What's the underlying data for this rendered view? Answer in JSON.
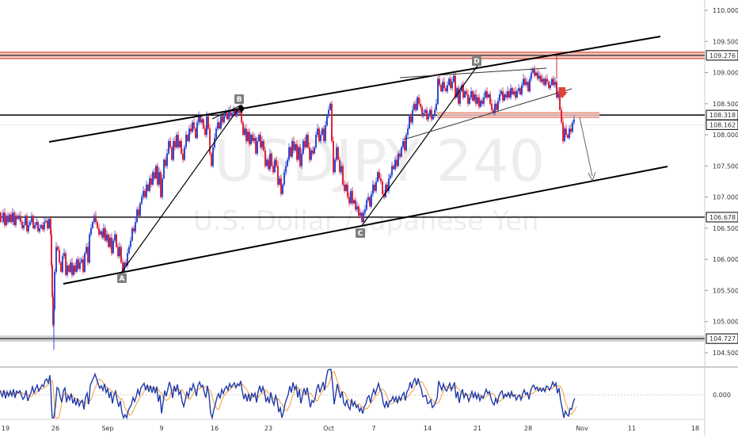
{
  "chart_data": {
    "type": "candlestick",
    "symbol": "USDJPY",
    "interval": "240",
    "instrument": "U.S. Dollar / Japanese Yen",
    "y_range": [
      104.35,
      110.15
    ],
    "y_ticks": [
      "110.000",
      "109.500",
      "109.000",
      "108.500",
      "108.000",
      "107.500",
      "107.000",
      "106.500",
      "106.000",
      "105.500",
      "105.000",
      "104.500"
    ],
    "x_ticks": [
      "19",
      "26",
      "Sep",
      "9",
      "16",
      "23",
      "Oct",
      "7",
      "14",
      "21",
      "28",
      "Nov",
      "11",
      "18"
    ],
    "horizontal_levels": [
      {
        "price": 109.276,
        "label": "109.276",
        "style": "zone-red"
      },
      {
        "price": 108.318,
        "label": "108.318",
        "style": "black"
      },
      {
        "price": 108.162,
        "label": "108.162",
        "style": "current"
      },
      {
        "price": 106.678,
        "label": "106.678",
        "style": "black"
      },
      {
        "price": 104.727,
        "label": "104.727",
        "style": "zone-gray"
      }
    ],
    "pattern_points": [
      "A",
      "B",
      "C",
      "D"
    ],
    "price_path": [
      [
        0,
        106.75
      ],
      [
        3,
        106.6
      ],
      [
        5,
        106.75
      ],
      [
        7,
        106.55
      ],
      [
        9,
        106.7
      ],
      [
        11,
        106.6
      ],
      [
        13,
        106.72
      ],
      [
        15,
        106.6
      ],
      [
        17,
        106.75
      ],
      [
        19,
        106.55
      ],
      [
        21,
        106.7
      ],
      [
        23,
        106.65
      ],
      [
        25,
        106.7
      ],
      [
        27,
        106.6
      ],
      [
        29,
        106.5
      ],
      [
        31,
        106.55
      ],
      [
        33,
        106.7
      ],
      [
        35,
        106.45
      ],
      [
        37,
        106.55
      ],
      [
        39,
        106.6
      ],
      [
        41,
        106.7
      ],
      [
        43,
        106.5
      ],
      [
        45,
        106.55
      ],
      [
        47,
        106.6
      ],
      [
        49,
        106.45
      ],
      [
        51,
        106.5
      ],
      [
        53,
        106.55
      ],
      [
        55,
        106.48
      ],
      [
        57,
        106.6
      ],
      [
        59,
        106.62
      ],
      [
        61,
        106.5
      ],
      [
        63,
        106.65
      ],
      [
        64,
        106.4
      ],
      [
        65,
        105.9
      ],
      [
        66,
        105.4
      ],
      [
        67,
        104.95
      ],
      [
        68,
        105.2
      ],
      [
        70,
        105.8
      ],
      [
        72,
        106.2
      ],
      [
        74,
        106.15
      ],
      [
        76,
        105.95
      ],
      [
        78,
        105.8
      ],
      [
        80,
        106.05
      ],
      [
        82,
        106.1
      ],
      [
        84,
        105.75
      ],
      [
        86,
        105.9
      ],
      [
        88,
        105.8
      ],
      [
        90,
        105.95
      ],
      [
        92,
        105.75
      ],
      [
        94,
        105.9
      ],
      [
        96,
        105.8
      ],
      [
        98,
        106.0
      ],
      [
        100,
        105.85
      ],
      [
        102,
        105.95
      ],
      [
        104,
        106.0
      ],
      [
        106,
        105.8
      ],
      [
        108,
        106.1
      ],
      [
        110,
        106.2
      ],
      [
        112,
        105.95
      ],
      [
        114,
        106.4
      ],
      [
        116,
        106.5
      ],
      [
        118,
        106.6
      ],
      [
        120,
        106.7
      ],
      [
        122,
        106.6
      ],
      [
        124,
        106.5
      ],
      [
        126,
        106.4
      ],
      [
        128,
        106.45
      ],
      [
        130,
        106.35
      ],
      [
        132,
        106.5
      ],
      [
        134,
        106.3
      ],
      [
        136,
        106.4
      ],
      [
        138,
        106.2
      ],
      [
        140,
        106.35
      ],
      [
        142,
        106.1
      ],
      [
        144,
        106.3
      ],
      [
        146,
        106.4
      ],
      [
        148,
        106.2
      ],
      [
        150,
        106.05
      ],
      [
        152,
        106.2
      ],
      [
        154,
        105.95
      ],
      [
        156,
        105.8
      ],
      [
        158,
        105.95
      ],
      [
        160,
        105.9
      ],
      [
        162,
        106.1
      ],
      [
        164,
        106.2
      ],
      [
        166,
        106.3
      ],
      [
        168,
        106.5
      ],
      [
        170,
        106.45
      ],
      [
        172,
        106.6
      ],
      [
        174,
        106.8
      ],
      [
        176,
        106.7
      ],
      [
        178,
        106.9
      ],
      [
        180,
        107.0
      ],
      [
        182,
        107.1
      ],
      [
        184,
        107.0
      ],
      [
        186,
        107.2
      ],
      [
        188,
        107.1
      ],
      [
        190,
        107.3
      ],
      [
        192,
        107.2
      ],
      [
        194,
        107.4
      ],
      [
        196,
        107.3
      ],
      [
        198,
        107.5
      ],
      [
        200,
        107.2
      ],
      [
        202,
        107.4
      ],
      [
        204,
        107.0
      ],
      [
        206,
        107.3
      ],
      [
        208,
        107.6
      ],
      [
        210,
        107.5
      ],
      [
        212,
        107.7
      ],
      [
        214,
        107.9
      ],
      [
        216,
        107.8
      ],
      [
        218,
        107.6
      ],
      [
        220,
        107.9
      ],
      [
        222,
        107.8
      ],
      [
        224,
        108.0
      ],
      [
        226,
        107.8
      ],
      [
        228,
        107.9
      ],
      [
        230,
        107.7
      ],
      [
        232,
        107.6
      ],
      [
        234,
        107.8
      ],
      [
        236,
        108.0
      ],
      [
        238,
        107.9
      ],
      [
        240,
        108.1
      ],
      [
        242,
        108.05
      ],
      [
        244,
        108.2
      ],
      [
        246,
        108.1
      ],
      [
        248,
        107.95
      ],
      [
        250,
        108.2
      ],
      [
        252,
        108.3
      ],
      [
        254,
        108.2
      ],
      [
        256,
        108.25
      ],
      [
        258,
        108.1
      ],
      [
        260,
        108.0
      ],
      [
        262,
        108.3
      ],
      [
        264,
        108.1
      ],
      [
        266,
        107.7
      ],
      [
        268,
        107.5
      ],
      [
        270,
        107.8
      ],
      [
        272,
        107.95
      ],
      [
        274,
        108.1
      ],
      [
        276,
        108.2
      ],
      [
        278,
        108.1
      ],
      [
        280,
        108.3
      ],
      [
        282,
        108.2
      ],
      [
        284,
        108.3
      ],
      [
        286,
        108.35
      ],
      [
        288,
        108.25
      ],
      [
        290,
        108.4
      ],
      [
        292,
        108.3
      ],
      [
        294,
        108.35
      ],
      [
        296,
        108.4
      ],
      [
        298,
        108.3
      ],
      [
        300,
        108.4
      ],
      [
        302,
        108.35
      ],
      [
        304,
        108.45
      ],
      [
        306,
        108.2
      ],
      [
        308,
        108.0
      ],
      [
        310,
        108.1
      ],
      [
        312,
        107.9
      ],
      [
        314,
        108.05
      ],
      [
        316,
        107.85
      ],
      [
        318,
        108.0
      ],
      [
        320,
        107.9
      ],
      [
        322,
        107.95
      ],
      [
        324,
        107.7
      ],
      [
        326,
        107.9
      ],
      [
        328,
        108.0
      ],
      [
        330,
        107.8
      ],
      [
        332,
        107.9
      ],
      [
        334,
        107.75
      ],
      [
        336,
        107.5
      ],
      [
        338,
        107.6
      ],
      [
        340,
        107.45
      ],
      [
        342,
        107.7
      ],
      [
        344,
        107.5
      ],
      [
        346,
        107.4
      ],
      [
        348,
        107.6
      ],
      [
        350,
        107.5
      ],
      [
        352,
        107.2
      ],
      [
        354,
        107.3
      ],
      [
        356,
        107.05
      ],
      [
        358,
        107.2
      ],
      [
        360,
        107.4
      ],
      [
        362,
        107.5
      ],
      [
        364,
        107.6
      ],
      [
        366,
        107.8
      ],
      [
        368,
        107.65
      ],
      [
        370,
        107.9
      ],
      [
        372,
        107.75
      ],
      [
        374,
        107.85
      ],
      [
        376,
        107.6
      ],
      [
        378,
        107.8
      ],
      [
        380,
        107.5
      ],
      [
        382,
        107.7
      ],
      [
        384,
        107.9
      ],
      [
        386,
        107.8
      ],
      [
        388,
        108.0
      ],
      [
        390,
        107.8
      ],
      [
        392,
        107.6
      ],
      [
        394,
        107.75
      ],
      [
        396,
        107.7
      ],
      [
        398,
        107.8
      ],
      [
        400,
        108.0
      ],
      [
        402,
        108.1
      ],
      [
        404,
        107.9
      ],
      [
        406,
        108.0
      ],
      [
        408,
        108.1
      ],
      [
        410,
        107.9
      ],
      [
        412,
        108.15
      ],
      [
        414,
        108.3
      ],
      [
        416,
        108.4
      ],
      [
        418,
        108.5
      ],
      [
        420,
        107.9
      ],
      [
        422,
        107.4
      ],
      [
        424,
        107.6
      ],
      [
        426,
        107.8
      ],
      [
        428,
        107.6
      ],
      [
        430,
        107.4
      ],
      [
        432,
        107.5
      ],
      [
        434,
        107.2
      ],
      [
        436,
        107.1
      ],
      [
        438,
        107.2
      ],
      [
        440,
        107.0
      ],
      [
        442,
        106.9
      ],
      [
        444,
        107.1
      ],
      [
        446,
        106.9
      ],
      [
        448,
        106.95
      ],
      [
        450,
        106.8
      ],
      [
        452,
        106.85
      ],
      [
        454,
        106.7
      ],
      [
        456,
        106.75
      ],
      [
        458,
        106.6
      ],
      [
        460,
        106.75
      ],
      [
        462,
        106.8
      ],
      [
        464,
        106.95
      ],
      [
        466,
        107.0
      ],
      [
        468,
        106.85
      ],
      [
        470,
        107.05
      ],
      [
        472,
        107.2
      ],
      [
        474,
        107.1
      ],
      [
        476,
        107.25
      ],
      [
        478,
        107.4
      ],
      [
        480,
        107.3
      ],
      [
        482,
        107.25
      ],
      [
        484,
        107.05
      ],
      [
        486,
        107.0
      ],
      [
        488,
        107.2
      ],
      [
        490,
        107.1
      ],
      [
        492,
        107.3
      ],
      [
        494,
        107.35
      ],
      [
        496,
        107.5
      ],
      [
        498,
        107.45
      ],
      [
        500,
        107.6
      ],
      [
        502,
        107.5
      ],
      [
        504,
        107.7
      ],
      [
        506,
        107.65
      ],
      [
        508,
        107.8
      ],
      [
        510,
        107.9
      ],
      [
        512,
        107.75
      ],
      [
        514,
        108.0
      ],
      [
        516,
        108.1
      ],
      [
        518,
        108.3
      ],
      [
        520,
        108.2
      ],
      [
        522,
        108.4
      ],
      [
        524,
        108.5
      ],
      [
        526,
        108.4
      ],
      [
        528,
        108.6
      ],
      [
        530,
        108.5
      ],
      [
        532,
        108.45
      ],
      [
        534,
        108.3
      ],
      [
        536,
        108.35
      ],
      [
        538,
        108.4
      ],
      [
        540,
        108.25
      ],
      [
        542,
        108.3
      ],
      [
        544,
        108.4
      ],
      [
        546,
        108.25
      ],
      [
        548,
        108.3
      ],
      [
        550,
        108.4
      ],
      [
        552,
        108.5
      ],
      [
        554,
        108.9
      ],
      [
        556,
        108.8
      ],
      [
        558,
        108.7
      ],
      [
        560,
        108.85
      ],
      [
        562,
        108.75
      ],
      [
        564,
        108.7
      ],
      [
        566,
        108.8
      ],
      [
        568,
        108.9
      ],
      [
        570,
        108.75
      ],
      [
        572,
        108.85
      ],
      [
        574,
        108.95
      ],
      [
        576,
        108.6
      ],
      [
        578,
        108.75
      ],
      [
        580,
        108.5
      ],
      [
        582,
        108.7
      ],
      [
        584,
        108.8
      ],
      [
        586,
        108.6
      ],
      [
        588,
        108.7
      ],
      [
        590,
        108.65
      ],
      [
        592,
        108.5
      ],
      [
        594,
        108.6
      ],
      [
        596,
        108.7
      ],
      [
        598,
        108.55
      ],
      [
        600,
        108.65
      ],
      [
        602,
        108.5
      ],
      [
        604,
        108.6
      ],
      [
        606,
        108.45
      ],
      [
        608,
        108.55
      ],
      [
        610,
        108.5
      ],
      [
        612,
        108.6
      ],
      [
        614,
        108.7
      ],
      [
        616,
        108.6
      ],
      [
        618,
        108.65
      ],
      [
        620,
        108.5
      ],
      [
        622,
        108.4
      ],
      [
        624,
        108.35
      ],
      [
        626,
        108.5
      ],
      [
        628,
        108.4
      ],
      [
        630,
        108.55
      ],
      [
        632,
        108.65
      ],
      [
        634,
        108.7
      ],
      [
        636,
        108.55
      ],
      [
        638,
        108.65
      ],
      [
        640,
        108.6
      ],
      [
        642,
        108.7
      ],
      [
        644,
        108.6
      ],
      [
        646,
        108.75
      ],
      [
        648,
        108.65
      ],
      [
        650,
        108.7
      ],
      [
        652,
        108.6
      ],
      [
        654,
        108.7
      ],
      [
        656,
        108.75
      ],
      [
        658,
        108.65
      ],
      [
        660,
        108.8
      ],
      [
        662,
        108.9
      ],
      [
        664,
        108.8
      ],
      [
        666,
        108.85
      ],
      [
        668,
        108.7
      ],
      [
        670,
        108.9
      ],
      [
        672,
        109.0
      ],
      [
        674,
        109.05
      ],
      [
        676,
        108.95
      ],
      [
        678,
        109.0
      ],
      [
        680,
        108.9
      ],
      [
        682,
        108.95
      ],
      [
        684,
        108.85
      ],
      [
        686,
        108.9
      ],
      [
        688,
        108.8
      ],
      [
        690,
        108.9
      ],
      [
        692,
        108.85
      ],
      [
        694,
        108.75
      ],
      [
        696,
        108.8
      ],
      [
        698,
        108.9
      ],
      [
        700,
        108.8
      ],
      [
        702,
        108.85
      ],
      [
        704,
        108.6
      ],
      [
        706,
        108.7
      ],
      [
        708,
        108.4
      ],
      [
        710,
        108.2
      ],
      [
        712,
        107.9
      ],
      [
        714,
        108.1
      ],
      [
        716,
        108.0
      ],
      [
        718,
        107.95
      ],
      [
        720,
        108.1
      ],
      [
        722,
        108.05
      ],
      [
        724,
        108.2
      ],
      [
        726,
        108.25
      ]
    ]
  }
}
